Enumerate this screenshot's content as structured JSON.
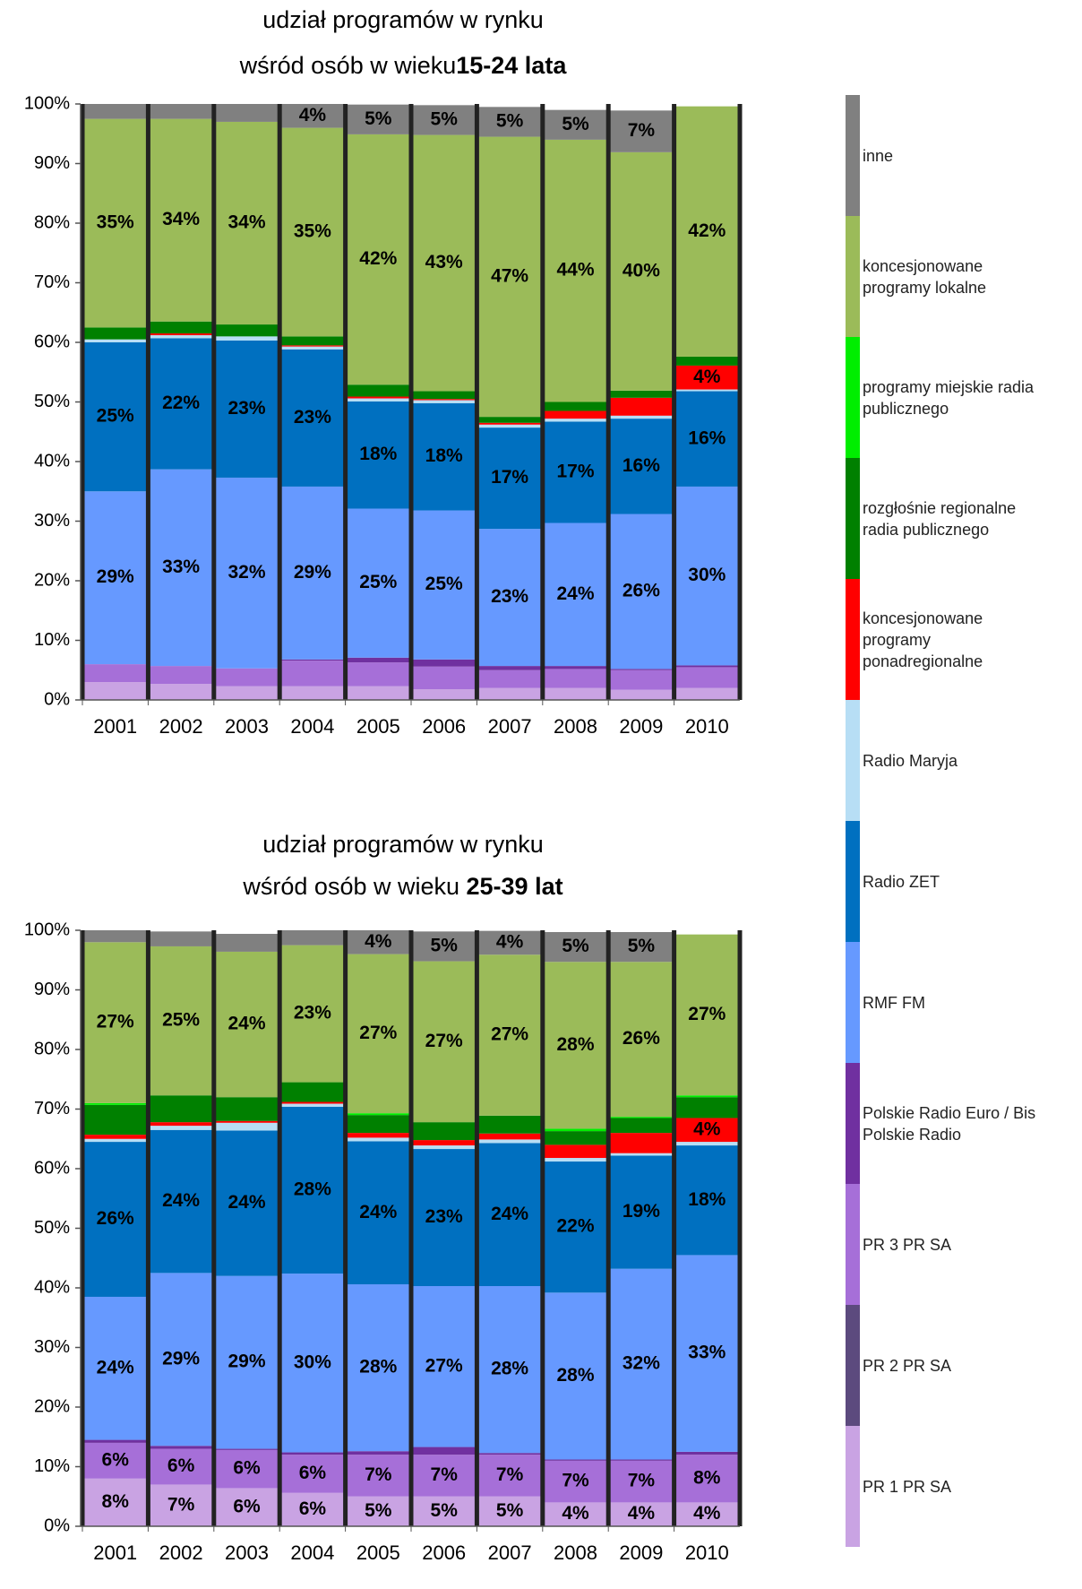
{
  "chart_data": [
    {
      "type": "bar",
      "stacked": true,
      "title": "udział programów w rynku",
      "subtitle": "wśród osób w wieku",
      "subtitle_bold": "15-24 lata",
      "categories": [
        "2001",
        "2002",
        "2003",
        "2004",
        "2005",
        "2006",
        "2007",
        "2008",
        "2009",
        "2010"
      ],
      "ylim": [
        0,
        100
      ],
      "yticks": [
        {
          "value": 0,
          "label": "0%"
        },
        {
          "value": 10,
          "label": "10%"
        },
        {
          "value": 20,
          "label": "20%"
        },
        {
          "value": 30,
          "label": "30%"
        },
        {
          "value": 40,
          "label": "40%"
        },
        {
          "value": 50,
          "label": "50%"
        },
        {
          "value": 60,
          "label": "60%"
        },
        {
          "value": 70,
          "label": "70%"
        },
        {
          "value": 80,
          "label": "80%"
        },
        {
          "value": 90,
          "label": "90%"
        },
        {
          "value": 100,
          "label": "100%"
        }
      ],
      "grid": false,
      "legend": "right",
      "series": [
        {
          "name": "PR 1 PR SA",
          "color": "#c9a3e3",
          "values": [
            3,
            2.7,
            2.3,
            2.3,
            2.3,
            1.8,
            2,
            2,
            1.7,
            2
          ]
        },
        {
          "name": "PR 2 PR SA",
          "color": "#5c4a7e",
          "values": [
            0,
            0,
            0,
            0,
            0,
            0,
            0,
            0,
            0,
            0
          ]
        },
        {
          "name": "PR 3 PR SA",
          "color": "#a66fd8",
          "values": [
            3,
            3,
            3,
            4.3,
            4,
            3.8,
            3,
            3.2,
            3.3,
            3.5
          ]
        },
        {
          "name": "Polskie Radio Euro / Bis Polskie Radio",
          "color": "#7030a0",
          "values": [
            0,
            0,
            0,
            0.2,
            0.8,
            1.2,
            0.7,
            0.5,
            0.2,
            0.3
          ]
        },
        {
          "name": "RMF FM",
          "color": "#6699ff",
          "label_color": "#000000",
          "values": [
            29,
            33,
            32,
            29,
            25,
            25,
            23,
            24,
            26,
            30
          ],
          "value_labels": [
            "29%",
            "33%",
            "32%",
            "29%",
            "25%",
            "25%",
            "23%",
            "24%",
            "26%",
            "30%"
          ]
        },
        {
          "name": "Radio ZET",
          "color": "#0070c0",
          "label_color": "#ffffff",
          "values": [
            25,
            22,
            23,
            23,
            18,
            18,
            17,
            17,
            16,
            16
          ],
          "value_labels": [
            "25%",
            "22%",
            "23%",
            "23%",
            "18%",
            "18%",
            "17%",
            "17%",
            "16%",
            "16%"
          ]
        },
        {
          "name": "Radio Maryja",
          "color": "#b7def5",
          "values": [
            0.5,
            0.5,
            0.7,
            0.5,
            0.5,
            0.5,
            0.5,
            0.5,
            0.5,
            0.3
          ]
        },
        {
          "name": "koncesjonowane programy ponadregionalne",
          "color": "#ff0000",
          "label_color": "#000000",
          "values": [
            0,
            0.3,
            0,
            0.2,
            0.3,
            0.2,
            0.3,
            1.3,
            3,
            4
          ],
          "value_labels": [
            null,
            null,
            null,
            null,
            null,
            null,
            null,
            null,
            null,
            "4%"
          ]
        },
        {
          "name": "rozgłośnie regionalne radia publicznego",
          "color": "#008000",
          "values": [
            2,
            2,
            2,
            1.5,
            2,
            1.3,
            1,
            1.5,
            1.2,
            1.5
          ]
        },
        {
          "name": "programy miejskie radia publicznego",
          "color": "#00ee00",
          "values": [
            0,
            0,
            0,
            0,
            0,
            0,
            0,
            0,
            0,
            0
          ]
        },
        {
          "name": "koncesjonowane programy lokalne",
          "color": "#9bbb59",
          "label_color": "#000000",
          "values": [
            35,
            34,
            34,
            35,
            42,
            43,
            47,
            44,
            40,
            42
          ],
          "value_labels": [
            "35%",
            "34%",
            "34%",
            "35%",
            "42%",
            "43%",
            "47%",
            "44%",
            "40%",
            "42%"
          ]
        },
        {
          "name": "inne",
          "color": "#808080",
          "label_color": "#ffffff",
          "values": [
            2.5,
            2.5,
            3,
            4,
            5,
            5,
            5,
            5,
            7,
            0
          ],
          "value_labels": [
            null,
            null,
            null,
            "4%",
            "5%",
            "5%",
            "5%",
            "5%",
            "7%",
            null
          ]
        }
      ]
    },
    {
      "type": "bar",
      "stacked": true,
      "title": "udział programów w rynku",
      "subtitle": "wśród osób w wieku ",
      "subtitle_bold": "25-39 lat",
      "categories": [
        "2001",
        "2002",
        "2003",
        "2004",
        "2005",
        "2006",
        "2007",
        "2008",
        "2009",
        "2010"
      ],
      "ylim": [
        0,
        100
      ],
      "yticks": [
        {
          "value": 0,
          "label": "0%"
        },
        {
          "value": 10,
          "label": "10%"
        },
        {
          "value": 20,
          "label": "20%"
        },
        {
          "value": 30,
          "label": "30%"
        },
        {
          "value": 40,
          "label": "40%"
        },
        {
          "value": 50,
          "label": "50%"
        },
        {
          "value": 60,
          "label": "60%"
        },
        {
          "value": 70,
          "label": "70%"
        },
        {
          "value": 80,
          "label": "80%"
        },
        {
          "value": 90,
          "label": "90%"
        },
        {
          "value": 100,
          "label": "100%"
        }
      ],
      "grid": false,
      "series": [
        {
          "name": "PR 1 PR SA",
          "color": "#c9a3e3",
          "label_color": "#000000",
          "values": [
            8,
            7,
            6.4,
            5.6,
            5,
            5,
            5,
            4,
            4,
            4
          ],
          "value_labels": [
            "8%",
            "7%",
            "6%",
            "6%",
            "5%",
            "5%",
            "5%",
            "4%",
            "4%",
            "4%"
          ]
        },
        {
          "name": "PR 2 PR SA",
          "color": "#5c4a7e",
          "values": [
            0,
            0,
            0,
            0,
            0,
            0,
            0,
            0,
            0,
            0
          ]
        },
        {
          "name": "PR 3 PR SA",
          "color": "#a66fd8",
          "label_color": "#ffffff",
          "values": [
            6,
            6,
            6.4,
            6.4,
            7,
            7,
            7,
            7,
            7,
            8
          ],
          "value_labels": [
            "6%",
            "6%",
            "6%",
            "6%",
            "7%",
            "7%",
            "7%",
            "7%",
            "7%",
            "8%"
          ]
        },
        {
          "name": "Polskie Radio Euro / Bis Polskie Radio",
          "color": "#7030a0",
          "values": [
            0.5,
            0.5,
            0.2,
            0.4,
            0.6,
            1.3,
            0.3,
            0.2,
            0.2,
            0.5
          ]
        },
        {
          "name": "RMF FM",
          "color": "#6699ff",
          "label_color": "#000000",
          "values": [
            24,
            29,
            29,
            30,
            28,
            27,
            28,
            28,
            32,
            33
          ],
          "value_labels": [
            "24%",
            "29%",
            "29%",
            "30%",
            "28%",
            "27%",
            "28%",
            "28%",
            "32%",
            "33%"
          ]
        },
        {
          "name": "Radio ZET",
          "color": "#0070c0",
          "label_color": "#ffffff",
          "values": [
            26,
            24,
            24.4,
            28,
            24,
            23,
            24,
            22,
            19,
            18.4
          ],
          "value_labels": [
            "26%",
            "24%",
            "24%",
            "28%",
            "24%",
            "23%",
            "24%",
            "22%",
            "19%",
            "18%"
          ]
        },
        {
          "name": "Radio Maryja",
          "color": "#b7def5",
          "values": [
            0.5,
            0.7,
            1.3,
            0.5,
            0.6,
            0.6,
            0.6,
            0.6,
            0.4,
            0.6
          ]
        },
        {
          "name": "koncesjonowane programy ponadregionalne",
          "color": "#ff0000",
          "label_color": "#000000",
          "values": [
            0.7,
            0.6,
            0.3,
            0.3,
            0.8,
            0.9,
            1,
            2.2,
            3.4,
            4
          ],
          "value_labels": [
            null,
            null,
            null,
            null,
            null,
            null,
            null,
            null,
            null,
            "4%"
          ]
        },
        {
          "name": "rozgłośnie regionalne radia publicznego",
          "color": "#008000",
          "values": [
            5,
            4.5,
            4,
            3.3,
            3,
            3,
            3,
            2.3,
            2.5,
            3.5
          ]
        },
        {
          "name": "programy miejskie radia publicznego",
          "color": "#00ee00",
          "values": [
            0.3,
            0,
            0,
            0,
            0.3,
            0,
            0,
            0.4,
            0.2,
            0.3
          ]
        },
        {
          "name": "koncesjonowane programy lokalne",
          "color": "#9bbb59",
          "label_color": "#000000",
          "values": [
            27,
            25,
            24.4,
            23,
            26.7,
            27,
            27,
            28,
            26,
            27
          ],
          "value_labels": [
            "27%",
            "25%",
            "24%",
            "23%",
            "27%",
            "27%",
            "27%",
            "28%",
            "26%",
            "27%"
          ]
        },
        {
          "name": "inne",
          "color": "#808080",
          "label_color": "#ffffff",
          "values": [
            2,
            2.5,
            3,
            2.5,
            4,
            5,
            4,
            5,
            5,
            0
          ],
          "value_labels": [
            null,
            null,
            null,
            null,
            "4%",
            "5%",
            "4%",
            "5%",
            "5%",
            null
          ]
        }
      ]
    }
  ]
}
